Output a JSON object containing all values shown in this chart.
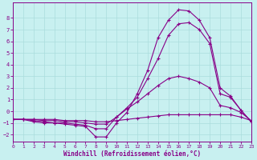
{
  "bg_color": "#c8f0f0",
  "grid_color": "#aadddd",
  "line_color": "#880088",
  "xlabel": "Windchill (Refroidissement éolien,°C)",
  "xlim": [
    0,
    23
  ],
  "ylim": [
    -2.6,
    9.3
  ],
  "yticks": [
    -2,
    -1,
    0,
    1,
    2,
    3,
    4,
    5,
    6,
    7,
    8
  ],
  "xticks": [
    0,
    1,
    2,
    3,
    4,
    5,
    6,
    7,
    8,
    9,
    10,
    11,
    12,
    13,
    14,
    15,
    16,
    17,
    18,
    19,
    20,
    21,
    22,
    23
  ],
  "curves": [
    [
      -0.7,
      -0.7,
      -0.7,
      -0.7,
      -0.7,
      -0.8,
      -0.8,
      -0.8,
      -0.9,
      -0.9,
      -0.8,
      -0.7,
      -0.6,
      -0.5,
      -0.4,
      -0.3,
      -0.3,
      -0.3,
      -0.3,
      -0.3,
      -0.3,
      -0.3,
      -0.5,
      -0.8
    ],
    [
      -0.7,
      -0.7,
      -0.7,
      -0.8,
      -0.8,
      -0.9,
      -0.9,
      -1.0,
      -1.1,
      -1.1,
      -0.5,
      0.2,
      0.8,
      1.5,
      2.2,
      2.8,
      3.0,
      2.8,
      2.5,
      2.0,
      0.5,
      0.3,
      -0.1,
      -0.8
    ],
    [
      -0.7,
      -0.7,
      -0.8,
      -0.9,
      -1.0,
      -1.0,
      -1.1,
      -1.2,
      -1.5,
      -1.5,
      -0.5,
      0.3,
      1.2,
      2.8,
      4.5,
      6.5,
      7.5,
      7.6,
      7.0,
      5.8,
      1.5,
      1.2,
      0.1,
      -0.9
    ],
    [
      -0.7,
      -0.7,
      -0.9,
      -1.0,
      -1.0,
      -1.1,
      -1.2,
      -1.3,
      -2.2,
      -2.2,
      -1.0,
      -0.1,
      1.5,
      3.5,
      6.3,
      7.8,
      8.7,
      8.6,
      7.8,
      6.3,
      2.0,
      1.3,
      0.1,
      -0.9
    ]
  ]
}
